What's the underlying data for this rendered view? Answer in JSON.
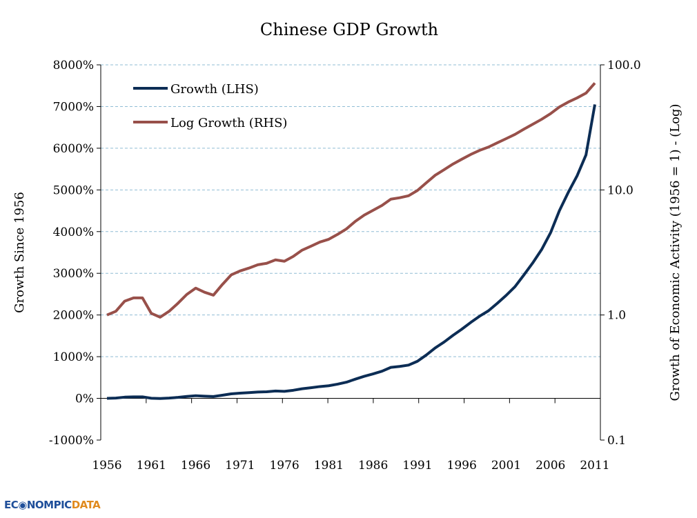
{
  "chart_data": {
    "type": "line",
    "title": "Chinese GDP Growth",
    "ylabel_left": "Growth Since 1956",
    "ylabel_right": "Growth of Economic Activity (1956 = 1) - (Log)",
    "ylim_left": [
      -1000,
      8000
    ],
    "ylim_right": [
      0.1,
      100
    ],
    "right_scale": "log",
    "left_ticks": [
      "-1000%",
      "0%",
      "1000%",
      "2000%",
      "3000%",
      "4000%",
      "5000%",
      "6000%",
      "7000%",
      "8000%"
    ],
    "right_ticks": [
      "0.1",
      "1.0",
      "10.0",
      "100.0"
    ],
    "x_ticks": [
      "1956",
      "1961",
      "1966",
      "1971",
      "1976",
      "1981",
      "1986",
      "1991",
      "1996",
      "2001",
      "2006",
      "2011"
    ],
    "grid": "horizontal dashed",
    "legend_placement": "top-left",
    "x": [
      1956,
      1957,
      1958,
      1959,
      1960,
      1961,
      1962,
      1963,
      1964,
      1965,
      1966,
      1967,
      1968,
      1969,
      1970,
      1971,
      1972,
      1973,
      1974,
      1975,
      1976,
      1977,
      1978,
      1979,
      1980,
      1981,
      1982,
      1983,
      1984,
      1985,
      1986,
      1987,
      1988,
      1989,
      1990,
      1991,
      1992,
      1993,
      1994,
      1995,
      1996,
      1997,
      1998,
      1999,
      2000,
      2001,
      2002,
      2003,
      2004,
      2005,
      2006,
      2007,
      2008,
      2009,
      2010,
      2011
    ],
    "series": [
      {
        "name": "Growth (LHS)",
        "axis": "left",
        "color": "#0c2d55",
        "values": [
          0,
          7,
          29,
          37,
          37,
          3,
          -4,
          7,
          24,
          46,
          64,
          52,
          44,
          75,
          109,
          125,
          137,
          152,
          159,
          176,
          169,
          194,
          230,
          255,
          283,
          303,
          341,
          388,
          461,
          529,
          587,
          651,
          743,
          766,
          798,
          890,
          1040,
          1210,
          1350,
          1510,
          1660,
          1820,
          1970,
          2100,
          2280,
          2470,
          2680,
          2960,
          3250,
          3570,
          3970,
          4500,
          4940,
          5340,
          5840,
          7050
        ]
      },
      {
        "name": "Log Growth (RHS)",
        "axis": "right",
        "color": "#98504a",
        "values": [
          1.0,
          1.07,
          1.29,
          1.37,
          1.37,
          1.03,
          0.96,
          1.07,
          1.24,
          1.46,
          1.64,
          1.52,
          1.44,
          1.75,
          2.09,
          2.25,
          2.37,
          2.52,
          2.59,
          2.76,
          2.69,
          2.94,
          3.3,
          3.55,
          3.83,
          4.03,
          4.41,
          4.88,
          5.61,
          6.29,
          6.87,
          7.51,
          8.43,
          8.66,
          8.98,
          9.9,
          11.4,
          13.1,
          14.5,
          16.1,
          17.6,
          19.2,
          20.7,
          22.0,
          23.8,
          25.7,
          27.8,
          30.6,
          33.5,
          36.7,
          40.7,
          46.0,
          50.4,
          54.4,
          59.4,
          71.5
        ]
      }
    ]
  },
  "logo": {
    "text": "ECONOMICDATA",
    "part1": "EC",
    "part2": "NOMPIC",
    "part3": "DATA"
  }
}
